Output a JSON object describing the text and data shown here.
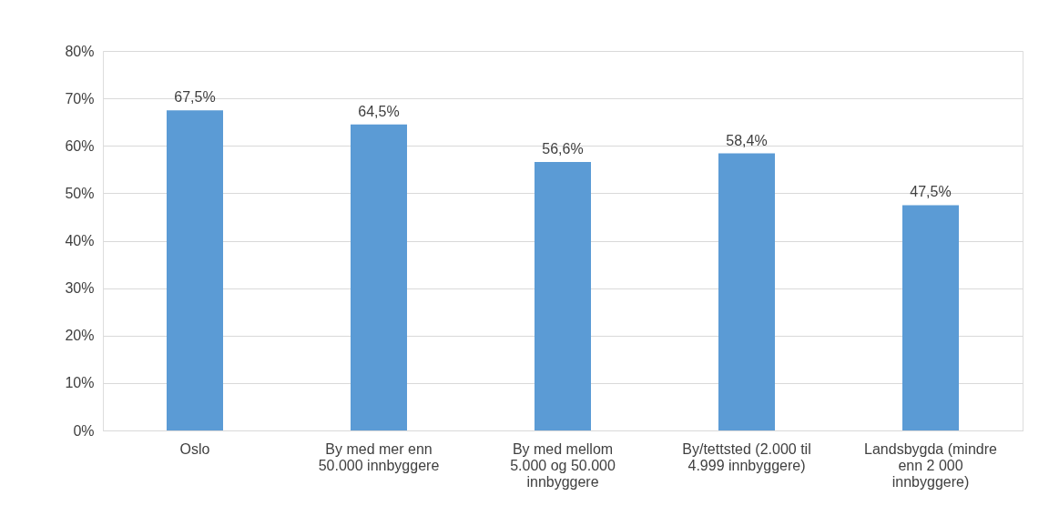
{
  "chart_data": {
    "type": "bar",
    "categories": [
      "Oslo",
      "By med mer enn 50.000 innbyggere",
      "By med mellom 5.000 og 50.000 innbyggere",
      "By/tettsted (2.000 til 4.999 innbyggere)",
      "Landsbygda (mindre enn 2 000 innbyggere)"
    ],
    "values": [
      67.5,
      64.5,
      56.6,
      58.4,
      47.5
    ],
    "value_labels": [
      "67,5%",
      "64,5%",
      "56,6%",
      "58,4%",
      "47,5%"
    ],
    "color": "#5b9bd5",
    "ylim": [
      0,
      80
    ],
    "yticks": [
      {
        "value": 0,
        "label": "0%"
      },
      {
        "value": 10,
        "label": "10%"
      },
      {
        "value": 20,
        "label": "20%"
      },
      {
        "value": 30,
        "label": "30%"
      },
      {
        "value": 40,
        "label": "40%"
      },
      {
        "value": 50,
        "label": "50%"
      },
      {
        "value": 60,
        "label": "60%"
      },
      {
        "value": 70,
        "label": "70%"
      },
      {
        "value": 80,
        "label": "80%"
      }
    ],
    "grid": "y"
  }
}
